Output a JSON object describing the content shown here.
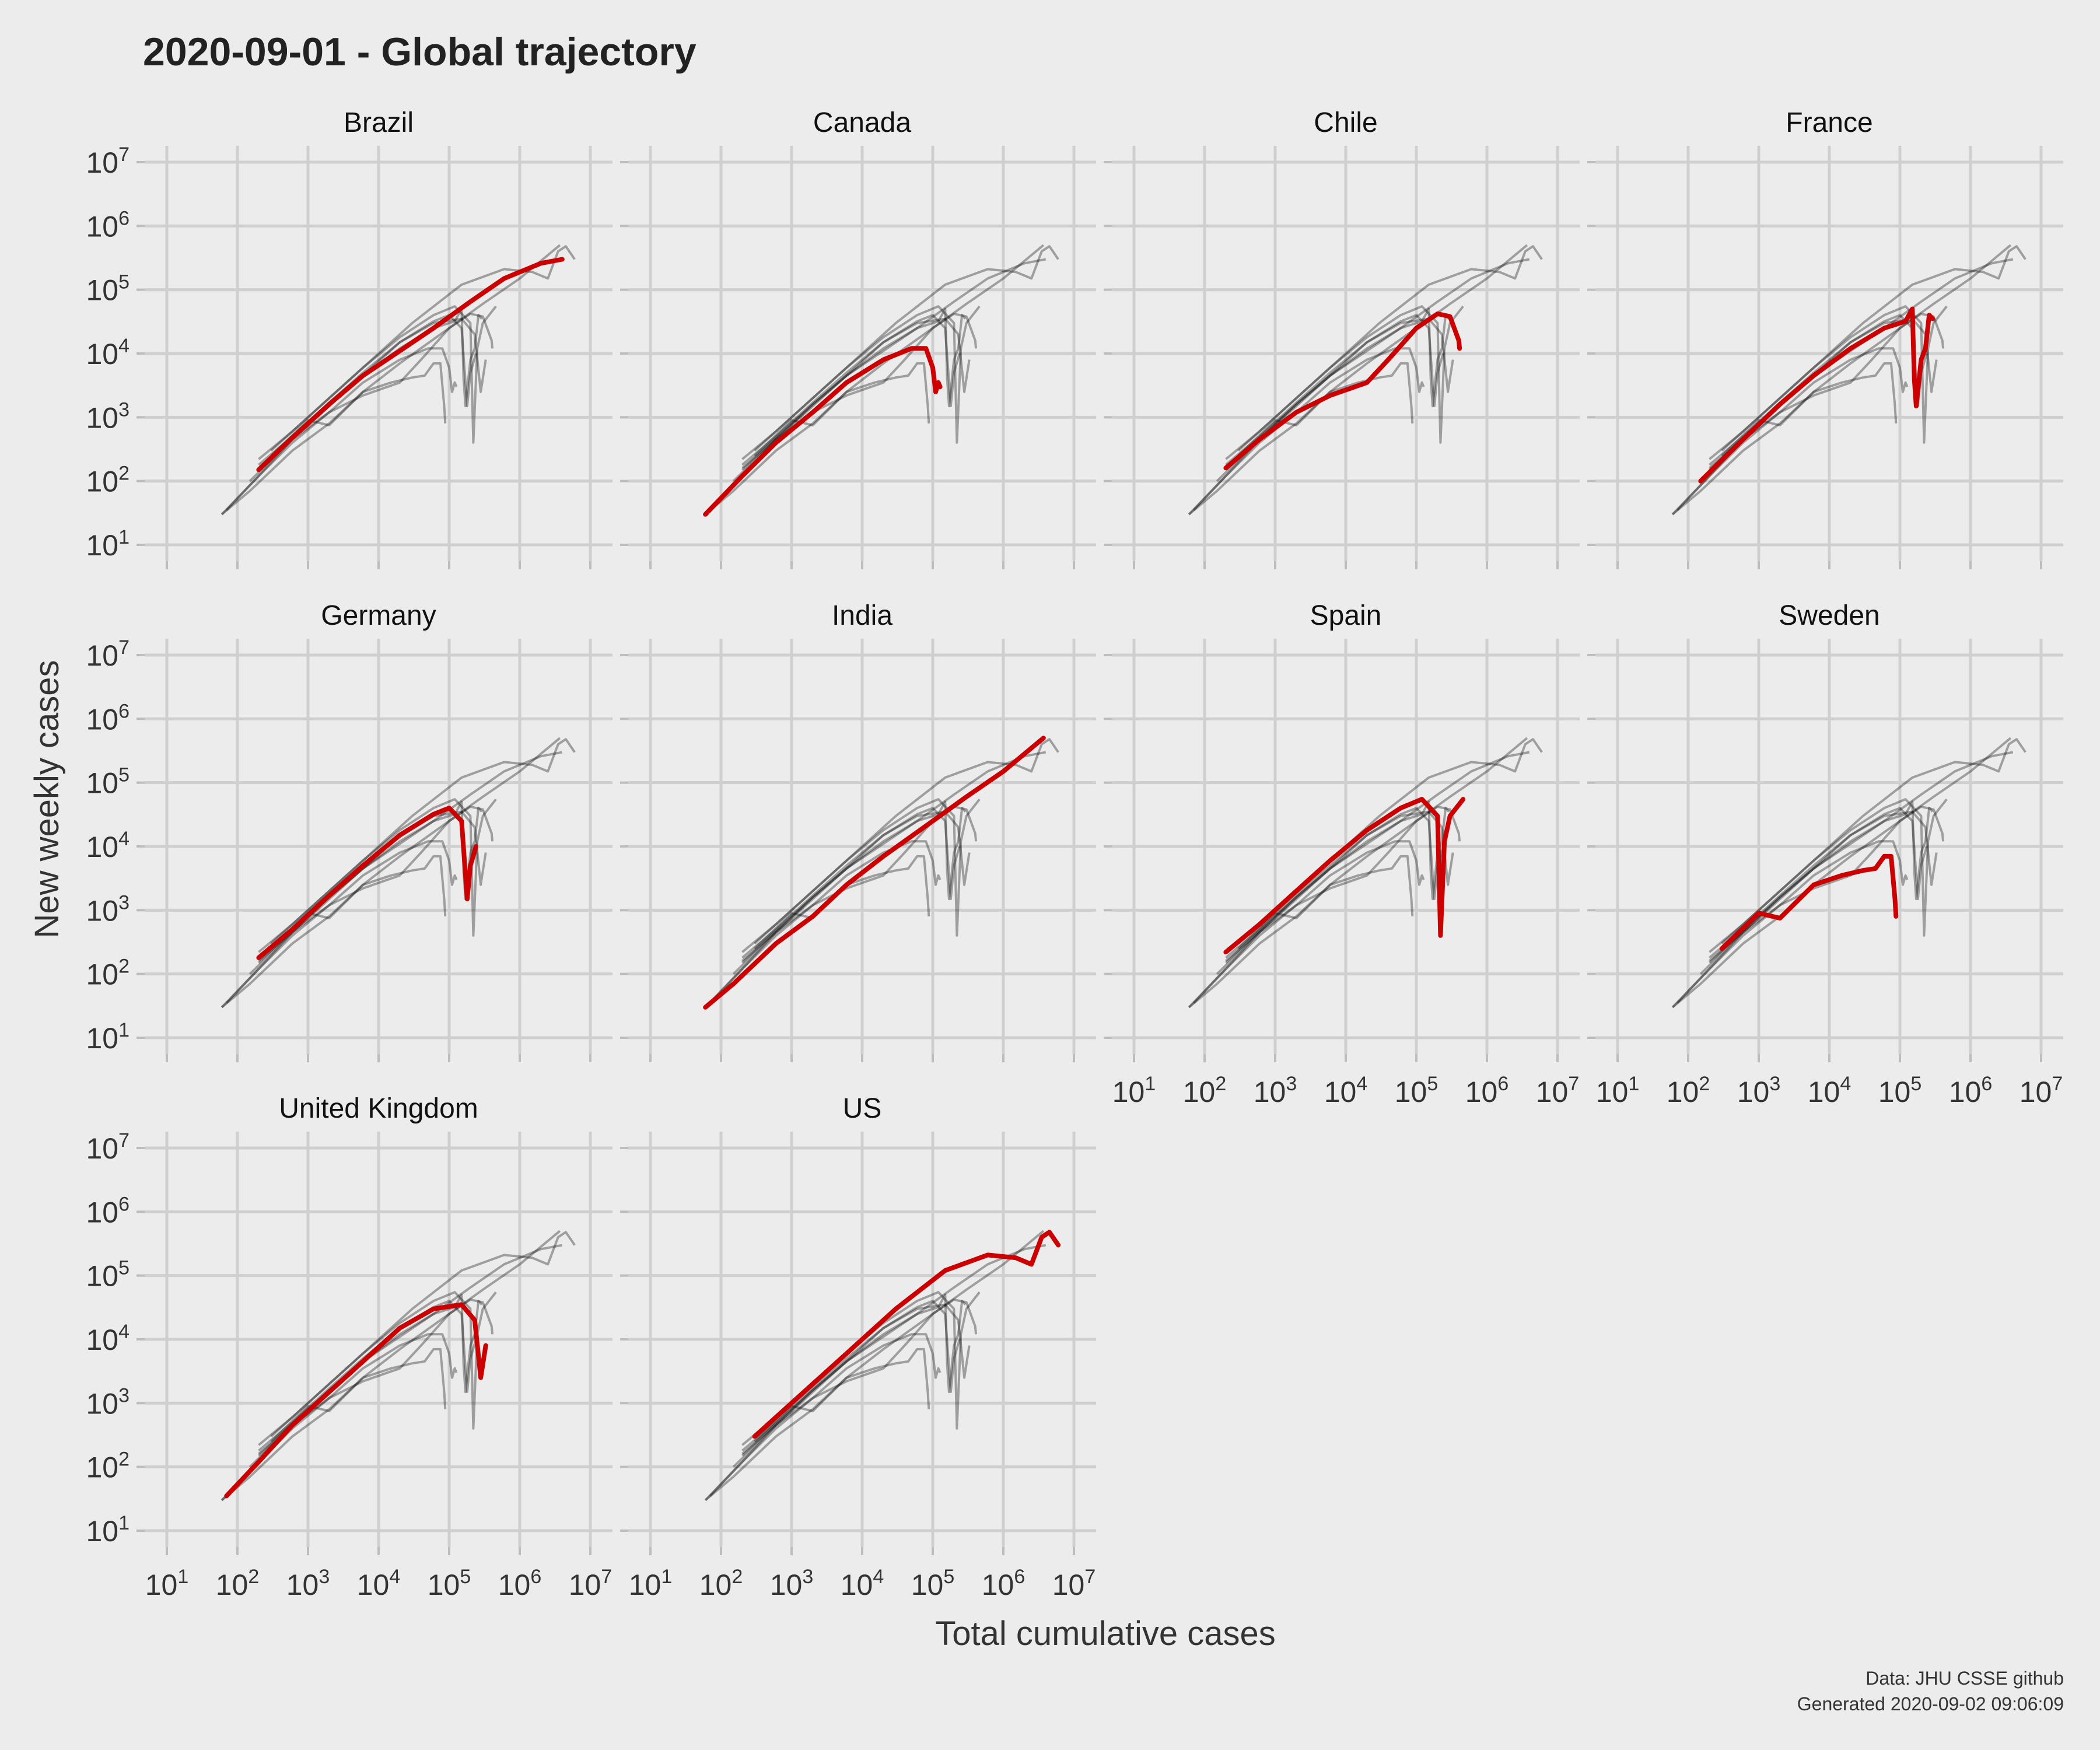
{
  "chart": {
    "title": "2020-09-01 - Global trajectory",
    "xlabel": "Total cumulative cases",
    "ylabel": "New weekly cases",
    "caption_line1": "Data: JHU CSSE github",
    "caption_line2": "Generated 2020-09-02 09:06:09"
  },
  "colors": {
    "background": "#ececec",
    "highlight": "#cc0000",
    "context": "#000000",
    "grid": "#cfcfcf"
  },
  "chart_data": {
    "type": "line",
    "facets": [
      "Brazil",
      "Canada",
      "Chile",
      "France",
      "Germany",
      "India",
      "Spain",
      "Sweden",
      "United Kingdom",
      "US"
    ],
    "x_scale": "log10",
    "y_scale": "log10",
    "xlim": [
      10,
      10000000
    ],
    "ylim": [
      10,
      10000000
    ],
    "x_tick_labels": [
      {
        "base": "10",
        "exp": "1"
      },
      {
        "base": "10",
        "exp": "2"
      },
      {
        "base": "10",
        "exp": "3"
      },
      {
        "base": "10",
        "exp": "4"
      },
      {
        "base": "10",
        "exp": "5"
      },
      {
        "base": "10",
        "exp": "6"
      },
      {
        "base": "10",
        "exp": "7"
      }
    ],
    "y_tick_labels": [
      {
        "base": "10",
        "exp": "1"
      },
      {
        "base": "10",
        "exp": "2"
      },
      {
        "base": "10",
        "exp": "3"
      },
      {
        "base": "10",
        "exp": "4"
      },
      {
        "base": "10",
        "exp": "5"
      },
      {
        "base": "10",
        "exp": "6"
      },
      {
        "base": "10",
        "exp": "7"
      }
    ],
    "grid": true,
    "legend": "none",
    "series": [
      {
        "name": "Brazil",
        "points": [
          [
            200,
            150
          ],
          [
            600,
            480
          ],
          [
            2000,
            1600
          ],
          [
            6000,
            4500
          ],
          [
            20000,
            11000
          ],
          [
            60000,
            25000
          ],
          [
            200000,
            65000
          ],
          [
            600000,
            150000
          ],
          [
            2000000,
            260000
          ],
          [
            4000000,
            300000
          ]
        ]
      },
      {
        "name": "Canada",
        "points": [
          [
            60,
            30
          ],
          [
            200,
            120
          ],
          [
            600,
            400
          ],
          [
            2000,
            1200
          ],
          [
            6000,
            3500
          ],
          [
            20000,
            8000
          ],
          [
            50000,
            12000
          ],
          [
            80000,
            12000
          ],
          [
            100000,
            6000
          ],
          [
            110000,
            2500
          ],
          [
            120000,
            3500
          ],
          [
            127000,
            3000
          ]
        ]
      },
      {
        "name": "Chile",
        "points": [
          [
            200,
            160
          ],
          [
            600,
            450
          ],
          [
            2000,
            1200
          ],
          [
            6000,
            2200
          ],
          [
            20000,
            3500
          ],
          [
            40000,
            8000
          ],
          [
            100000,
            25000
          ],
          [
            200000,
            42000
          ],
          [
            300000,
            38000
          ],
          [
            400000,
            16000
          ],
          [
            410000,
            12000
          ]
        ]
      },
      {
        "name": "France",
        "points": [
          [
            150,
            100
          ],
          [
            600,
            450
          ],
          [
            2000,
            1600
          ],
          [
            6000,
            4500
          ],
          [
            20000,
            12000
          ],
          [
            60000,
            25000
          ],
          [
            120000,
            32000
          ],
          [
            150000,
            50000
          ],
          [
            160000,
            4000
          ],
          [
            170000,
            1500
          ],
          [
            200000,
            8000
          ],
          [
            230000,
            12000
          ],
          [
            260000,
            40000
          ],
          [
            290000,
            35000
          ]
        ]
      },
      {
        "name": "Germany",
        "points": [
          [
            200,
            180
          ],
          [
            600,
            500
          ],
          [
            2000,
            1700
          ],
          [
            6000,
            5000
          ],
          [
            20000,
            15000
          ],
          [
            60000,
            32000
          ],
          [
            100000,
            40000
          ],
          [
            150000,
            25000
          ],
          [
            180000,
            1500
          ],
          [
            200000,
            5000
          ],
          [
            240000,
            10000
          ]
        ]
      },
      {
        "name": "India",
        "points": [
          [
            60,
            30
          ],
          [
            150,
            70
          ],
          [
            600,
            300
          ],
          [
            2000,
            800
          ],
          [
            6000,
            2500
          ],
          [
            20000,
            7000
          ],
          [
            100000,
            25000
          ],
          [
            300000,
            60000
          ],
          [
            1000000,
            150000
          ],
          [
            3700000,
            500000
          ]
        ]
      },
      {
        "name": "Spain",
        "points": [
          [
            200,
            220
          ],
          [
            600,
            600
          ],
          [
            2000,
            2000
          ],
          [
            6000,
            6000
          ],
          [
            20000,
            18000
          ],
          [
            60000,
            40000
          ],
          [
            120000,
            55000
          ],
          [
            200000,
            30000
          ],
          [
            220000,
            400
          ],
          [
            250000,
            12000
          ],
          [
            300000,
            30000
          ],
          [
            460000,
            55000
          ]
        ]
      },
      {
        "name": "Sweden",
        "points": [
          [
            300,
            250
          ],
          [
            1000,
            900
          ],
          [
            2000,
            750
          ],
          [
            6000,
            2500
          ],
          [
            15000,
            3500
          ],
          [
            30000,
            4200
          ],
          [
            45000,
            4500
          ],
          [
            60000,
            7000
          ],
          [
            75000,
            7000
          ],
          [
            85000,
            1500
          ],
          [
            88000,
            800
          ]
        ]
      },
      {
        "name": "United Kingdom",
        "points": [
          [
            70,
            35
          ],
          [
            200,
            120
          ],
          [
            600,
            450
          ],
          [
            2000,
            1500
          ],
          [
            6000,
            4500
          ],
          [
            20000,
            15000
          ],
          [
            60000,
            30000
          ],
          [
            150000,
            35000
          ],
          [
            230000,
            20000
          ],
          [
            280000,
            2500
          ],
          [
            330000,
            8000
          ]
        ]
      },
      {
        "name": "US",
        "points": [
          [
            300,
            300
          ],
          [
            1000,
            1000
          ],
          [
            6000,
            6000
          ],
          [
            30000,
            30000
          ],
          [
            150000,
            120000
          ],
          [
            600000,
            210000
          ],
          [
            1500000,
            190000
          ],
          [
            2500000,
            150000
          ],
          [
            3500000,
            400000
          ],
          [
            4500000,
            480000
          ],
          [
            6000000,
            300000
          ]
        ]
      }
    ]
  }
}
